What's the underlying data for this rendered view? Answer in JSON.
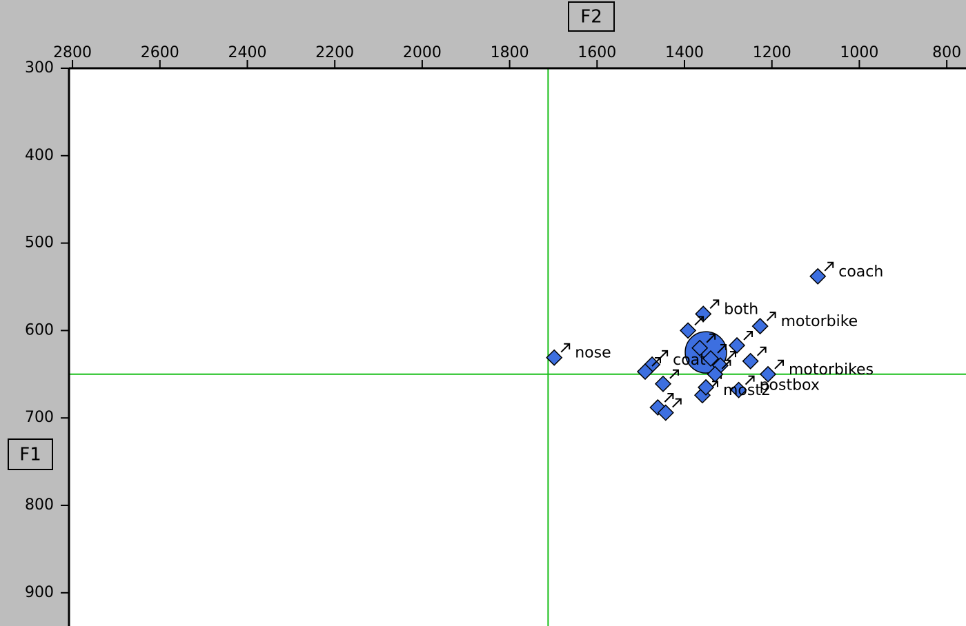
{
  "chart_data": {
    "type": "scatter",
    "x_label": "F2",
    "y_label": "F1",
    "x": [
      1095,
      1357,
      1227,
      1698,
      1474,
      1209,
      1276,
      1359,
      1392,
      1280,
      1249,
      1490,
      1449,
      1351,
      1461,
      1443,
      1365,
      1340,
      1318,
      1330
    ],
    "values": [
      538,
      581,
      595,
      631,
      639,
      650,
      668,
      674,
      600,
      617,
      635,
      647,
      661,
      665,
      688,
      694,
      620,
      632,
      640,
      650
    ],
    "labels": [
      "coach",
      "both",
      "motorbike",
      "nose",
      "coat",
      "motorbikes",
      "postbox",
      "most2",
      null,
      null,
      null,
      null,
      null,
      null,
      null,
      null,
      null,
      null,
      null,
      null
    ],
    "color": "#3d6fe0",
    "mean": {
      "x": 1351,
      "y": 625
    },
    "crosshair": {
      "x": 1712,
      "y": 650
    },
    "crosshair_color": "#1bbf1b",
    "xlim": [
      2808,
      756
    ],
    "ylim": [
      300,
      938
    ],
    "xticks": [
      2800,
      2600,
      2400,
      2200,
      2000,
      1800,
      1600,
      1400,
      1200,
      1000,
      800
    ],
    "yticks": [
      300,
      400,
      500,
      600,
      700,
      800,
      900
    ]
  }
}
